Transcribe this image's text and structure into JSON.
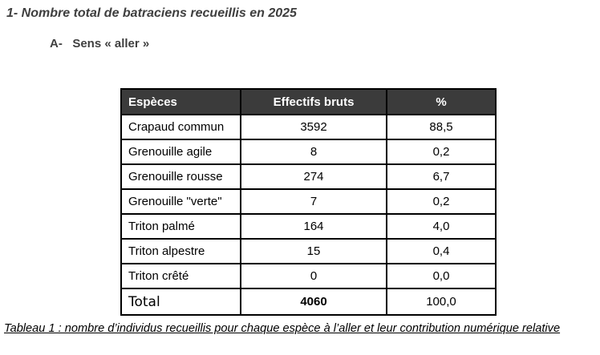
{
  "page": {
    "title": "1- Nombre total de batraciens recueillis en 2025",
    "subtitle": "A-   Sens « aller »",
    "caption": "Tableau 1 : nombre d’individus recueillis pour chaque espèce à l’aller et leur contribution numérique relative"
  },
  "table": {
    "headers": [
      "Espèces",
      "Effectifs bruts",
      "%"
    ],
    "rows": [
      {
        "espece": "Crapaud commun",
        "effectif": "3592",
        "pct": "88,5"
      },
      {
        "espece": "Grenouille agile",
        "effectif": "8",
        "pct": "0,2"
      },
      {
        "espece": "Grenouille rousse",
        "effectif": "274",
        "pct": "6,7"
      },
      {
        "espece": "Grenouille \"verte\"",
        "effectif": "7",
        "pct": "0,2"
      },
      {
        "espece": "Triton palmé",
        "effectif": "164",
        "pct": "4,0"
      },
      {
        "espece": "Triton alpestre",
        "effectif": "15",
        "pct": "0,4"
      },
      {
        "espece": "Triton crêté",
        "effectif": "0",
        "pct": "0,0"
      }
    ],
    "total": {
      "espece": "Total",
      "effectif": "4060",
      "pct": "100,0"
    }
  },
  "colors": {
    "header_bg": "#3b3b3b",
    "header_text": "#ffffff",
    "heading_text": "#3f3f3f",
    "border": "#000000",
    "page_bg": "#ffffff"
  }
}
